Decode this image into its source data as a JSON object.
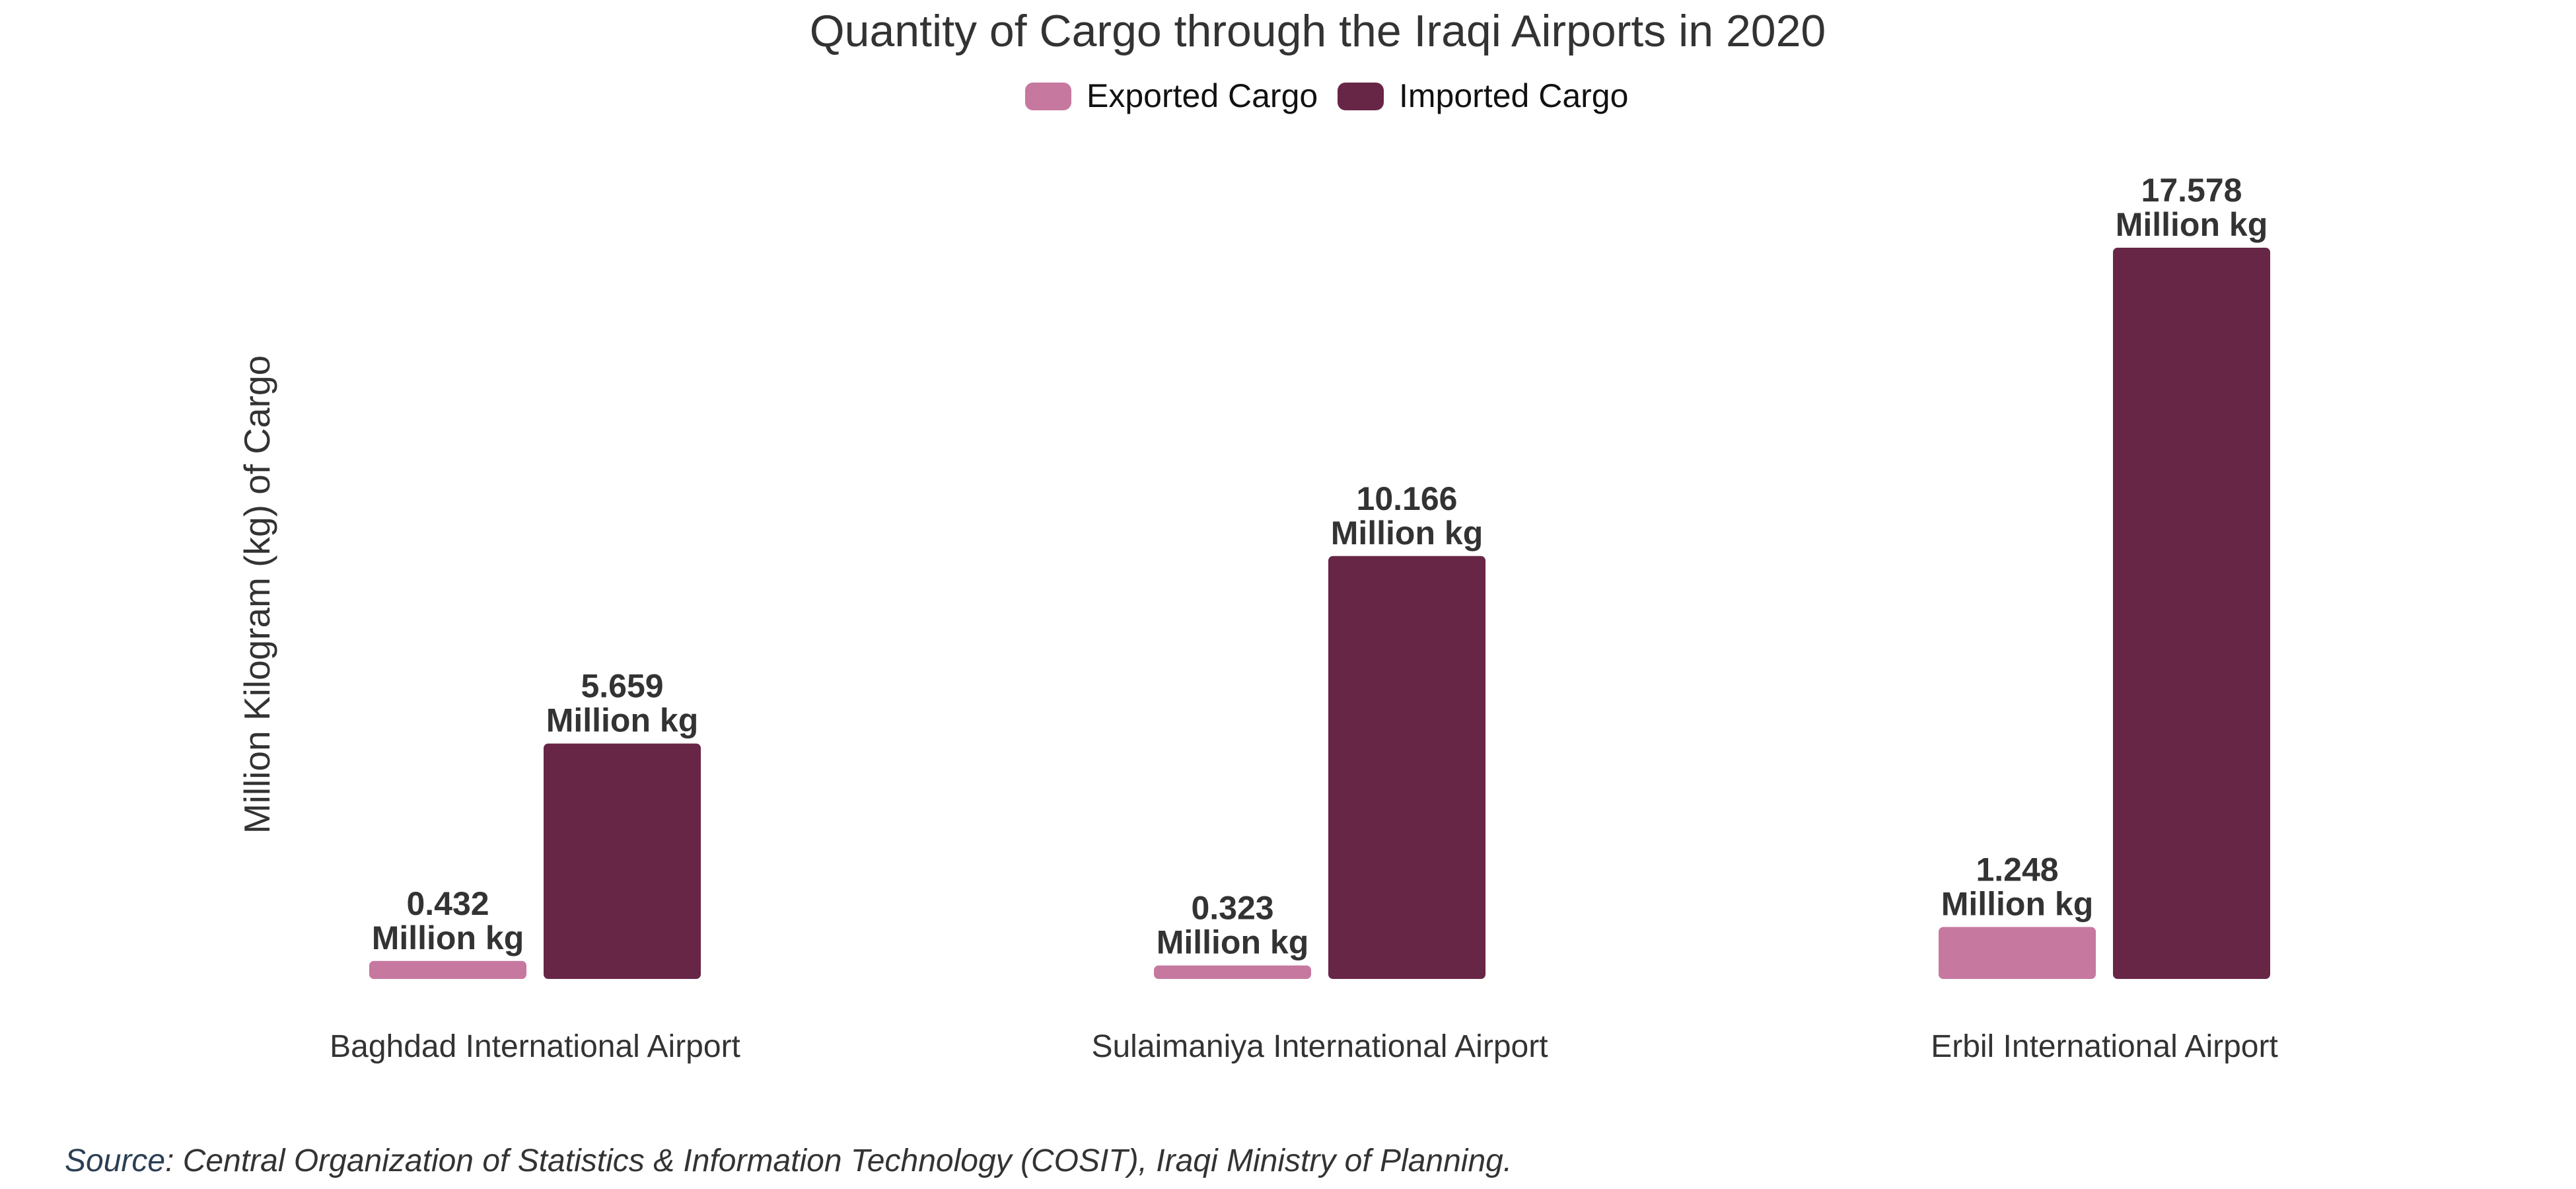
{
  "chart_data": {
    "type": "bar",
    "title": "Quantity of Cargo through the Iraqi Airports in 2020",
    "ylabel": "Million Kilogram (kg) of Cargo",
    "xlabel": "",
    "categories": [
      "Baghdad International Airport",
      "Sulaimaniya International Airport",
      "Erbil International Airport"
    ],
    "series": [
      {
        "name": "Exported Cargo",
        "color": "#c6789f",
        "values": [
          0.432,
          0.323,
          1.248
        ],
        "labels": [
          "0.432",
          "0.323",
          "1.248"
        ]
      },
      {
        "name": "Imported Cargo",
        "color": "#682646",
        "values": [
          5.659,
          10.166,
          17.578
        ],
        "labels": [
          "5.659",
          "10.166",
          "17.578"
        ]
      }
    ],
    "value_unit": "Million kg",
    "ylim": [
      0,
      17.578
    ],
    "grid": false,
    "legend": "top-center"
  },
  "source": {
    "prefix": "Source",
    "text": ": Central Organization of Statistics & Information Technology (COSIT), Iraqi Ministry of Planning."
  }
}
